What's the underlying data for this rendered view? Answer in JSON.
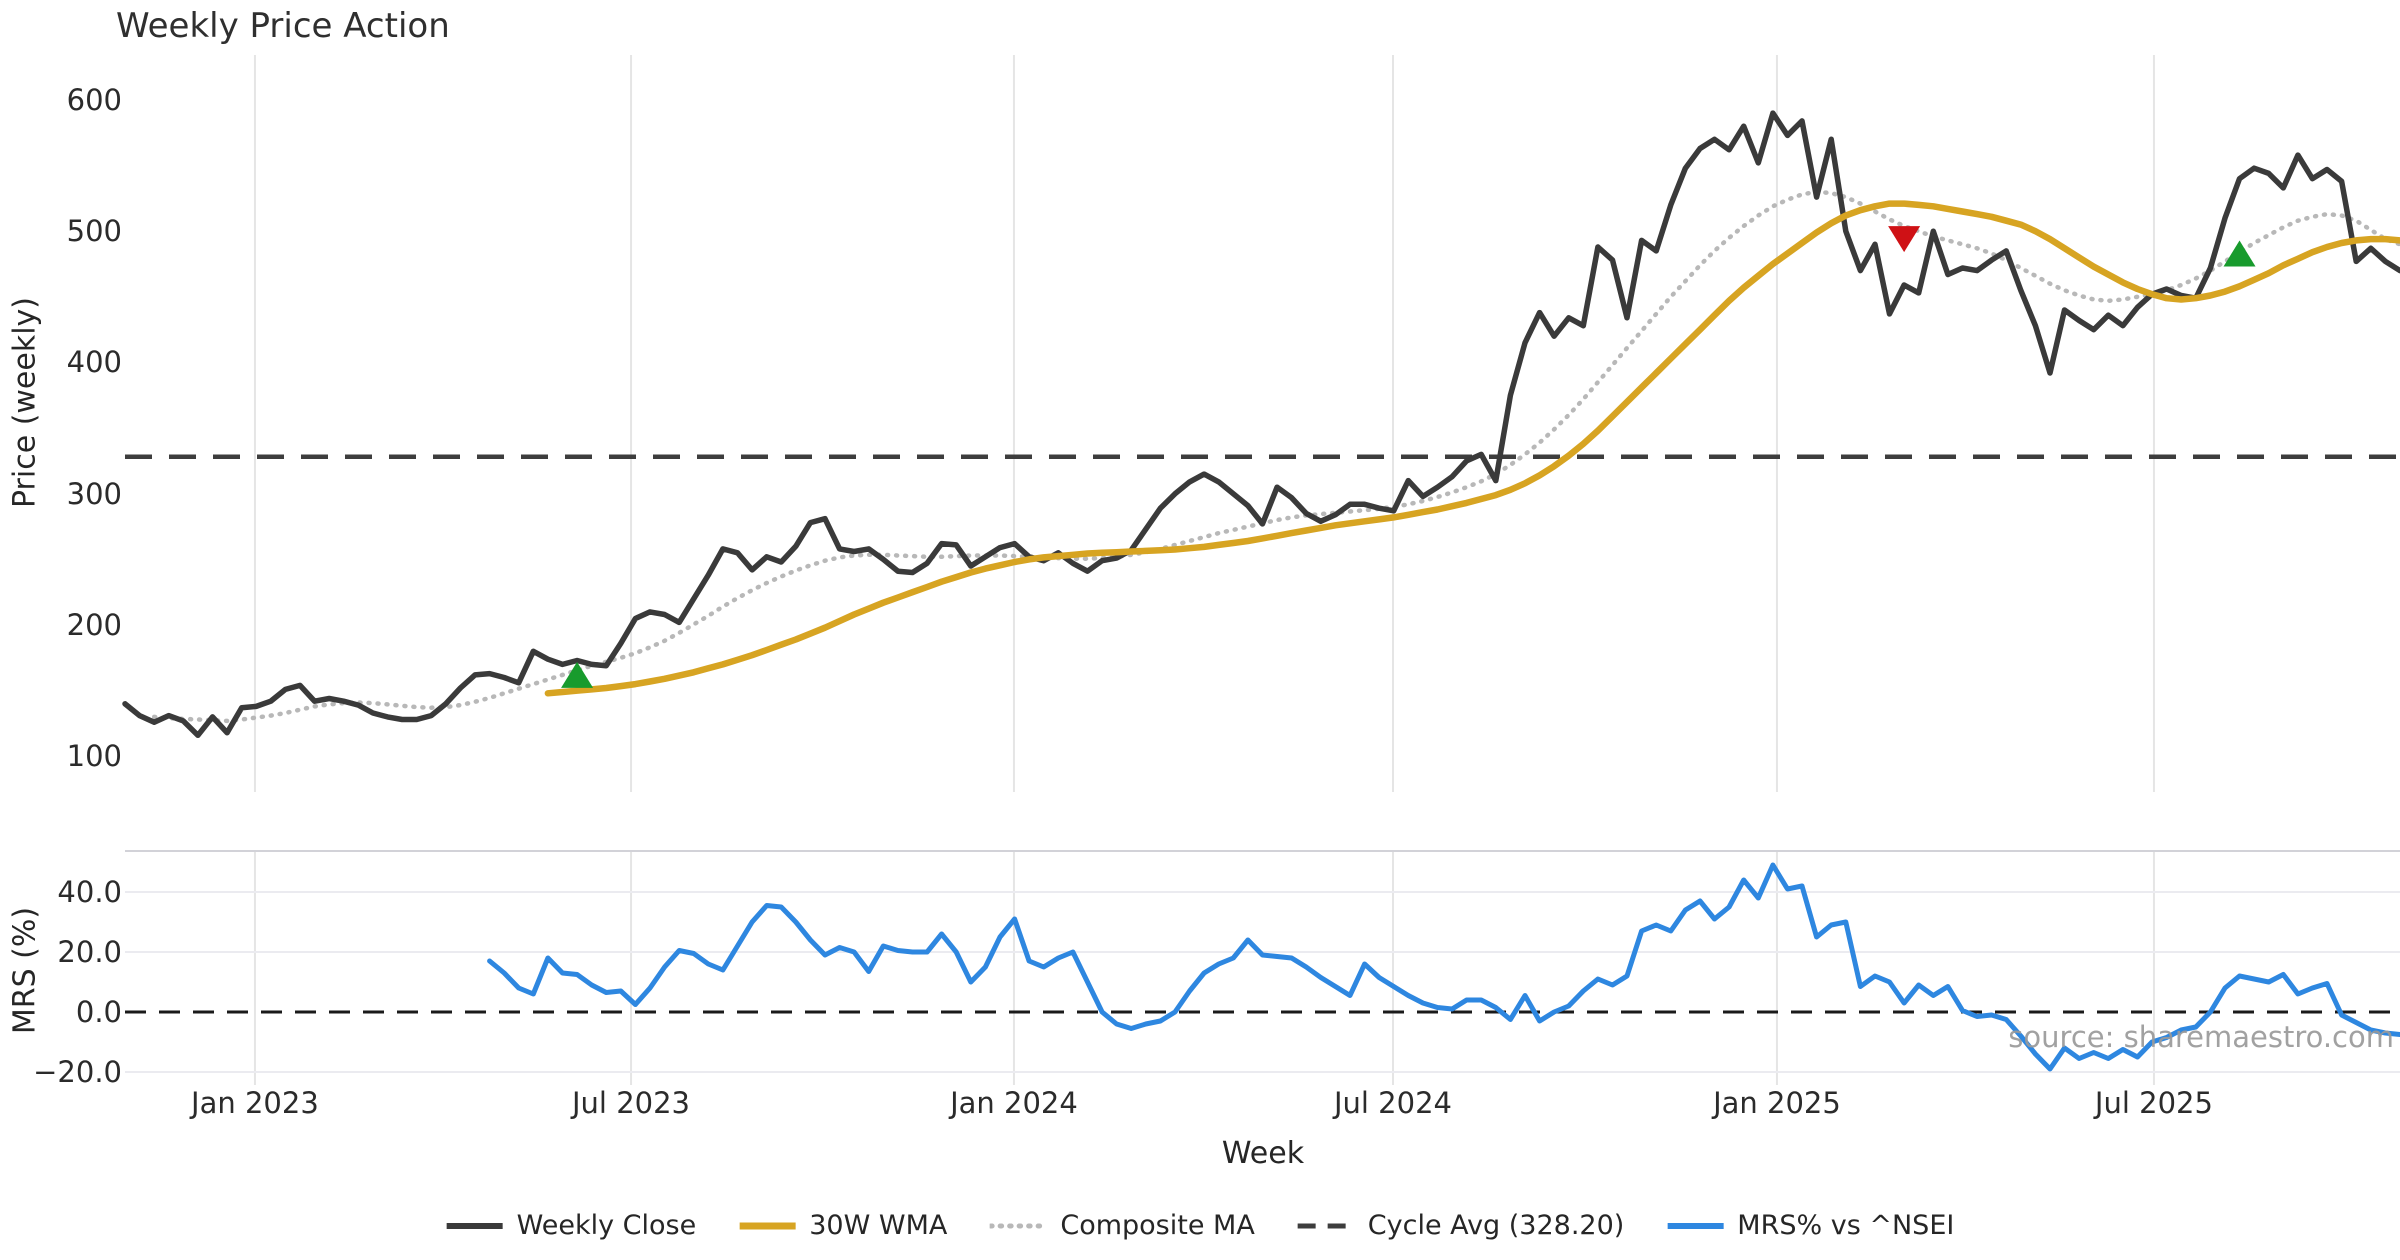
{
  "title": "Weekly Price Action",
  "watermark": "source: sharemaestro.com",
  "price_panel": {
    "ylabel": "Price (weekly)",
    "ticks": [
      100,
      200,
      300,
      400,
      500,
      600
    ],
    "ylim": [
      74,
      634
    ]
  },
  "mrs_panel": {
    "ylabel": "MRS (%)",
    "ticks": [
      {
        "label": "40.0",
        "value": 40
      },
      {
        "label": "20.0",
        "value": 20
      },
      {
        "label": "0.0",
        "value": 0
      },
      {
        "label": "−20.0",
        "value": -20
      }
    ],
    "gridline_values": [
      40,
      20,
      -20
    ],
    "zero_line_value": 0
  },
  "x_axis": {
    "label": "Week",
    "ticks": [
      {
        "label": "Jan 2023",
        "week": 8.91
      },
      {
        "label": "Jul 2023",
        "week": 34.7
      },
      {
        "label": "Jan 2024",
        "week": 60.96
      },
      {
        "label": "Jul 2024",
        "week": 86.95
      },
      {
        "label": "Jan 2025",
        "week": 113.28
      },
      {
        "label": "Jul 2025",
        "week": 139.13
      }
    ]
  },
  "legend": [
    {
      "label": "Weekly Close",
      "color": "#3a3a3a",
      "style": "solid",
      "width": 6
    },
    {
      "label": "30W WMA",
      "color": "#d7a422",
      "style": "solid",
      "width": 7
    },
    {
      "label": "Composite MA",
      "color": "#b8b8b8",
      "style": "dotted",
      "width": 5
    },
    {
      "label": "Cycle Avg (328.20)",
      "color": "#3d3d3d",
      "style": "dashed",
      "width": 5
    },
    {
      "label": "MRS% vs ^NSEI",
      "color": "#2e87e0",
      "style": "solid",
      "width": 6
    }
  ],
  "chart_data": {
    "type": "line",
    "x_unit": "week_index",
    "weeks_total": 157,
    "cycle_avg": 328.2,
    "series": [
      {
        "name": "Weekly Close",
        "color": "#3a3a3a",
        "start_week": 0,
        "values": [
          140,
          131,
          126,
          131,
          127,
          116,
          130,
          118,
          137,
          138,
          142,
          151,
          154,
          142,
          144,
          142,
          139,
          133,
          130,
          128,
          128,
          131,
          140,
          152,
          162,
          163,
          160,
          156,
          180,
          174,
          170,
          173,
          170,
          169,
          186,
          205,
          210,
          208,
          202,
          220,
          238,
          258,
          255,
          242,
          252,
          248,
          260,
          278,
          281,
          258,
          256,
          258,
          250,
          241,
          240,
          247,
          262,
          261,
          245,
          252,
          259,
          262,
          252,
          249,
          255,
          247,
          241,
          249,
          251,
          257,
          273,
          289,
          300,
          309,
          315,
          309,
          300,
          291,
          277,
          305,
          297,
          285,
          279,
          284,
          292,
          292,
          289,
          287,
          310,
          298,
          305,
          313,
          325,
          330,
          310,
          375,
          415,
          438,
          420,
          434,
          428,
          488,
          478,
          434,
          493,
          485,
          520,
          548,
          563,
          570,
          562,
          580,
          552,
          590,
          573,
          584,
          526,
          570,
          500,
          470,
          490,
          437,
          459,
          453,
          500,
          467,
          472,
          470,
          478,
          485,
          455,
          428,
          392,
          440,
          432,
          425,
          436,
          428,
          442,
          452,
          456,
          451,
          449,
          472,
          510,
          540,
          548,
          544,
          533,
          558,
          540,
          547,
          538,
          477,
          487,
          477,
          470
        ]
      },
      {
        "name": "30W WMA",
        "color": "#d7a422",
        "start_week": 29,
        "values": [
          148,
          149,
          150,
          151,
          152,
          153.5,
          155,
          157,
          159,
          161.5,
          164,
          167,
          170,
          173.5,
          177,
          181,
          185,
          189,
          193.5,
          198,
          203,
          208,
          212.5,
          217,
          221,
          225,
          229,
          233,
          236.5,
          240,
          243,
          245.5,
          248,
          250,
          251.5,
          252.5,
          253.5,
          254.5,
          255,
          255.5,
          256,
          256.5,
          257,
          257.5,
          258.5,
          259.5,
          261,
          262.5,
          264,
          266,
          268,
          270,
          272,
          274,
          276,
          277.5,
          279,
          280.5,
          282,
          284,
          286,
          288,
          290.5,
          293,
          296,
          299,
          303,
          308,
          314,
          321,
          329,
          338,
          348,
          359,
          370,
          381,
          392,
          403,
          414,
          425,
          436,
          447,
          457,
          466,
          475,
          483,
          491,
          499,
          506,
          512,
          516,
          519,
          521,
          521,
          520,
          519,
          517,
          515,
          513,
          511,
          508,
          505,
          500,
          494,
          487,
          480,
          473,
          467,
          461,
          456,
          452,
          449,
          448,
          449,
          451,
          454,
          458,
          463,
          468,
          474,
          479,
          484,
          488,
          491,
          493,
          494,
          494,
          493
        ]
      },
      {
        "name": "Composite MA",
        "color": "#b8b8b8",
        "start_week": 2,
        "values": [
          130,
          129,
          128.5,
          128,
          127.5,
          127,
          128,
          129.5,
          131,
          133,
          135.5,
          138,
          139.5,
          140.5,
          141,
          140.5,
          139.5,
          138.5,
          137.5,
          137,
          137.5,
          139,
          141.5,
          144.5,
          148,
          151.5,
          155,
          158.5,
          162,
          165.5,
          169,
          172,
          175,
          178.5,
          183,
          188,
          194,
          200.5,
          207,
          214,
          220.5,
          226.5,
          232,
          237,
          241.5,
          245.5,
          249,
          251.5,
          253,
          253.5,
          253.5,
          253,
          252.5,
          252,
          252,
          252.5,
          253,
          253,
          253,
          252.5,
          252,
          251.5,
          251,
          250.5,
          250.5,
          251,
          252,
          253.5,
          255.5,
          258,
          261,
          264,
          267,
          270,
          272.5,
          275,
          277.5,
          280,
          282,
          283.5,
          284.5,
          285.5,
          286.5,
          287.5,
          288.5,
          290,
          292,
          294.5,
          297.5,
          301,
          305,
          309.5,
          315,
          322,
          330,
          339,
          349,
          360,
          372,
          385,
          398,
          411,
          424,
          437,
          450,
          462,
          474,
          485,
          495,
          504,
          512,
          519,
          524,
          528,
          530,
          529,
          526,
          521,
          515,
          509,
          504,
          500,
          496,
          493,
          490,
          487,
          483,
          478,
          472,
          466,
          460,
          455,
          451,
          448,
          447,
          448,
          450,
          452,
          455,
          459,
          464,
          470,
          477,
          484,
          491,
          497,
          503,
          508,
          511,
          513,
          512,
          508,
          501,
          494,
          490
        ]
      },
      {
        "name": "MRS% vs ^NSEI",
        "color": "#2e87e0",
        "start_week": 25,
        "values": [
          17,
          13,
          8,
          6,
          18,
          13,
          12.5,
          9,
          6.5,
          7,
          2.5,
          8,
          15,
          20.5,
          19.5,
          16,
          14,
          22,
          30,
          35.5,
          35,
          30,
          24,
          19,
          21.5,
          20,
          13.5,
          22,
          20.5,
          20,
          20,
          26,
          20,
          10,
          15,
          25,
          31,
          17,
          15,
          18,
          20,
          10,
          0,
          -4,
          -5.5,
          -4,
          -3,
          0,
          7,
          13,
          16,
          18,
          24,
          19,
          18.5,
          18,
          15,
          11.5,
          8.5,
          5.5,
          16,
          11.5,
          8.5,
          5.5,
          3,
          1.5,
          1,
          4,
          4,
          1.5,
          -2.5,
          5.5,
          -3,
          0,
          2,
          7,
          11,
          9,
          12,
          27,
          29,
          27,
          34,
          37,
          31,
          35,
          44,
          38,
          49,
          41,
          42,
          25,
          29,
          30,
          8.5,
          12,
          10,
          3,
          9,
          5.5,
          8.5,
          0.5,
          -1.5,
          -1,
          -2.5,
          -8,
          -14,
          -19,
          -12,
          -15.5,
          -13.5,
          -15.5,
          -12.5,
          -15,
          -10,
          -8.5,
          -6,
          -5,
          0,
          8,
          12,
          11,
          10,
          12.5,
          6,
          8,
          9.5,
          -1,
          -3.5,
          -6,
          -7,
          -7.5
        ]
      }
    ],
    "markers": [
      {
        "shape": "triangle-up",
        "week": 31,
        "price": 162,
        "color": "#189b2d"
      },
      {
        "shape": "triangle-down",
        "week": 122,
        "price": 494,
        "color": "#cf1115"
      },
      {
        "shape": "triangle-up",
        "week": 145,
        "price": 483,
        "color": "#189b2d"
      }
    ]
  },
  "colors": {
    "background": "#ffffff",
    "gridline": "#e5e5e5",
    "mrs_gridline": "#ebebf0",
    "mrs_panel_border": "#d2d2d8",
    "zero_line": "#1a1a1a",
    "tick_text": "#2b2b2b"
  }
}
